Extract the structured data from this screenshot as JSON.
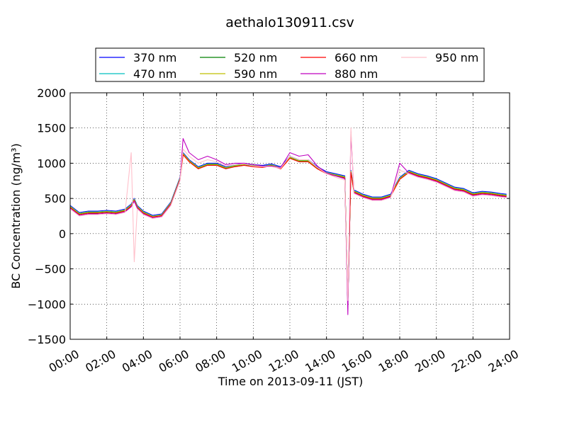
{
  "chart_data": {
    "type": "line",
    "title": "aethalo130911.csv",
    "xlabel": "Time on 2013-09-11 (JST)",
    "ylabel": "BC Concentration (ng/m³)",
    "xlim": [
      "00:00",
      "24:00"
    ],
    "ylim": [
      -1500,
      2000
    ],
    "x_ticks": [
      "00:00",
      "02:00",
      "04:00",
      "06:00",
      "08:00",
      "10:00",
      "12:00",
      "14:00",
      "16:00",
      "18:00",
      "20:00",
      "22:00",
      "24:00"
    ],
    "y_ticks": [
      -1500,
      -1000,
      -500,
      0,
      500,
      1000,
      1500,
      2000
    ],
    "grid": true,
    "legend_position": "top",
    "x": [
      "00:00",
      "00:30",
      "01:00",
      "01:30",
      "02:00",
      "02:30",
      "03:00",
      "03:20",
      "03:30",
      "03:40",
      "04:00",
      "04:30",
      "05:00",
      "05:30",
      "06:00",
      "06:10",
      "06:30",
      "07:00",
      "07:30",
      "08:00",
      "08:30",
      "09:00",
      "09:30",
      "10:00",
      "10:30",
      "11:00",
      "11:30",
      "12:00",
      "12:30",
      "13:00",
      "13:30",
      "14:00",
      "14:30",
      "15:00",
      "15:10",
      "15:20",
      "15:30",
      "16:00",
      "16:30",
      "17:00",
      "17:30",
      "18:00",
      "18:30",
      "19:00",
      "19:30",
      "20:00",
      "20:30",
      "21:00",
      "21:30",
      "22:00",
      "22:30",
      "23:00",
      "23:30",
      "23:50"
    ],
    "series": [
      {
        "name": "370 nm",
        "color": "#0000ff",
        "values": [
          400,
          300,
          320,
          320,
          330,
          320,
          350,
          420,
          500,
          400,
          320,
          260,
          280,
          450,
          800,
          1150,
          1050,
          950,
          1000,
          1000,
          950,
          980,
          1000,
          980,
          970,
          990,
          950,
          1100,
          1050,
          1050,
          950,
          880,
          850,
          820,
          -1000,
          900,
          620,
          560,
          520,
          520,
          560,
          800,
          900,
          850,
          820,
          780,
          720,
          660,
          640,
          580,
          600,
          590,
          570,
          560
        ]
      },
      {
        "name": "470 nm",
        "color": "#00bfbf",
        "values": [
          390,
          290,
          310,
          310,
          320,
          310,
          340,
          410,
          490,
          390,
          310,
          250,
          270,
          440,
          790,
          1140,
          1040,
          940,
          990,
          990,
          940,
          970,
          990,
          970,
          960,
          980,
          940,
          1090,
          1040,
          1040,
          940,
          870,
          840,
          810,
          -1000,
          890,
          610,
          550,
          510,
          510,
          550,
          790,
          890,
          840,
          810,
          770,
          710,
          650,
          630,
          570,
          590,
          580,
          560,
          550
        ]
      },
      {
        "name": "520 nm",
        "color": "#008000",
        "values": [
          380,
          280,
          300,
          300,
          310,
          300,
          330,
          400,
          480,
          380,
          300,
          240,
          260,
          430,
          780,
          1130,
          1030,
          930,
          980,
          980,
          930,
          960,
          980,
          960,
          950,
          970,
          930,
          1080,
          1030,
          1030,
          930,
          860,
          830,
          800,
          -980,
          880,
          600,
          540,
          500,
          500,
          540,
          780,
          880,
          830,
          800,
          760,
          700,
          640,
          620,
          560,
          580,
          570,
          550,
          540
        ]
      },
      {
        "name": "590 nm",
        "color": "#bfbf00",
        "values": [
          385,
          285,
          305,
          305,
          315,
          305,
          335,
          405,
          485,
          385,
          305,
          245,
          265,
          435,
          785,
          1135,
          1035,
          935,
          985,
          985,
          935,
          965,
          985,
          965,
          955,
          975,
          935,
          1085,
          1035,
          1035,
          935,
          865,
          835,
          805,
          -990,
          885,
          605,
          545,
          505,
          505,
          545,
          785,
          885,
          835,
          805,
          765,
          705,
          645,
          625,
          565,
          585,
          575,
          555,
          545
        ]
      },
      {
        "name": "660 nm",
        "color": "#ff0000",
        "values": [
          370,
          270,
          290,
          290,
          300,
          290,
          320,
          390,
          470,
          370,
          290,
          235,
          255,
          420,
          770,
          1120,
          1020,
          920,
          970,
          970,
          920,
          950,
          970,
          950,
          940,
          960,
          920,
          1070,
          1020,
          1020,
          920,
          850,
          820,
          790,
          -980,
          870,
          590,
          530,
          490,
          490,
          530,
          770,
          870,
          820,
          790,
          750,
          690,
          630,
          610,
          550,
          570,
          560,
          540,
          530
        ]
      },
      {
        "name": "880 nm",
        "color": "#bf00bf",
        "values": [
          360,
          260,
          280,
          280,
          290,
          280,
          310,
          380,
          460,
          360,
          280,
          225,
          245,
          410,
          760,
          1350,
          1150,
          1050,
          1100,
          1050,
          980,
          1000,
          1000,
          980,
          960,
          960,
          940,
          1150,
          1100,
          1120,
          960,
          860,
          820,
          780,
          -1150,
          1450,
          580,
          520,
          480,
          480,
          520,
          1000,
          860,
          810,
          780,
          740,
          680,
          620,
          600,
          540,
          560,
          550,
          530,
          520
        ]
      },
      {
        "name": "950 nm",
        "color": "#ffc0cb",
        "values": [
          350,
          250,
          270,
          270,
          280,
          270,
          300,
          1150,
          -400,
          350,
          270,
          215,
          235,
          400,
          750,
          1200,
          1100,
          1000,
          1050,
          1020,
          960,
          980,
          990,
          960,
          950,
          950,
          930,
          1100,
          1050,
          1050,
          940,
          850,
          800,
          760,
          -950,
          1500,
          570,
          510,
          470,
          470,
          510,
          900,
          850,
          800,
          770,
          730,
          670,
          610,
          590,
          530,
          550,
          540,
          520,
          510
        ]
      }
    ]
  }
}
